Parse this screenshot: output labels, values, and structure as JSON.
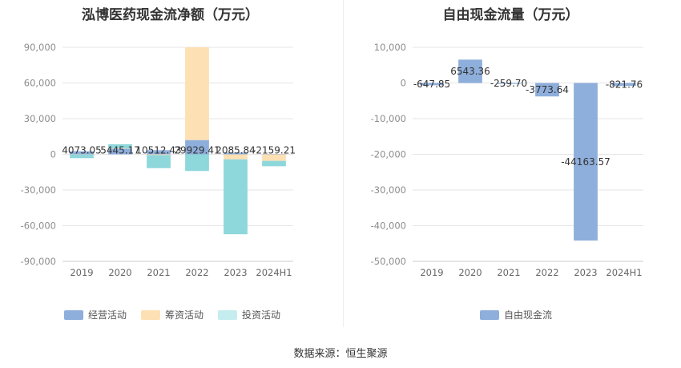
{
  "source": "数据来源：恒生聚源",
  "chart_data": [
    {
      "type": "bar",
      "title": "泓博医药现金流净额（万元）",
      "categories": [
        "2019",
        "2020",
        "2021",
        "2022",
        "2023",
        "2024H1"
      ],
      "ylim": [
        -90000,
        90000
      ],
      "yticks": [
        90000,
        60000,
        30000,
        0,
        -30000,
        -60000,
        -90000
      ],
      "ytick_labels": [
        "90,000",
        "60,000",
        "30,000",
        "0",
        "-30,000",
        "-60,000",
        "-90,000"
      ],
      "grid": true,
      "legend_position": "bottom",
      "series": [
        {
          "name": "经营活动",
          "color": "#8eaedb",
          "values": [
            2600,
            4800,
            3500,
            12000,
            1500,
            300
          ]
        },
        {
          "name": "筹资活动",
          "color": "#fde0b4",
          "values": [
            -200,
            300,
            -600,
            78000,
            -4200,
            -5500
          ]
        },
        {
          "name": "投资活动",
          "color": "#8ed7da",
          "values": [
            -3000,
            3400,
            -11000,
            -14000,
            -63000,
            -4500
          ]
        }
      ],
      "totals": [
        4073.05,
        5445.17,
        10512.43,
        29929.41,
        2085.84,
        -2159.21
      ],
      "total_labels": [
        "4073.05",
        "5445.17",
        "10512.43",
        "29929.41",
        "2085.84",
        "-2159.21"
      ]
    },
    {
      "type": "bar",
      "title": "自由现金流量（万元）",
      "categories": [
        "2019",
        "2020",
        "2021",
        "2022",
        "2023",
        "2024H1"
      ],
      "ylim": [
        -50000,
        10000
      ],
      "yticks": [
        10000,
        0,
        -10000,
        -20000,
        -30000,
        -40000,
        -50000
      ],
      "ytick_labels": [
        "10,000",
        "0",
        "-10,000",
        "-20,000",
        "-30,000",
        "-40,000",
        "-50,000"
      ],
      "grid": true,
      "legend_position": "bottom",
      "series": [
        {
          "name": "自由现金流",
          "color": "#8eaedb",
          "values": [
            -647.85,
            6543.36,
            -259.7,
            -3773.64,
            -44163.57,
            -821.76
          ]
        }
      ],
      "value_labels": [
        "-647.85",
        "6543.36",
        "-259.70",
        "-3773.64",
        "-44163.57",
        "-821.76"
      ]
    }
  ]
}
